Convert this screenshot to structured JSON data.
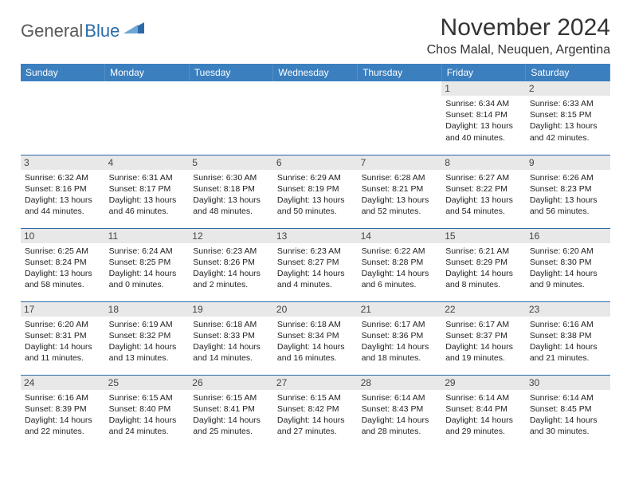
{
  "logo": {
    "text1": "General",
    "text2": "Blue"
  },
  "title": "November 2024",
  "location": "Chos Malal, Neuquen, Argentina",
  "colors": {
    "header_bg": "#3b7fbf",
    "border": "#2b6aa8",
    "daynum_bg": "#e8e8e8",
    "text": "#222222"
  },
  "daynames": [
    "Sunday",
    "Monday",
    "Tuesday",
    "Wednesday",
    "Thursday",
    "Friday",
    "Saturday"
  ],
  "weeks": [
    [
      {
        "n": "",
        "sr": "",
        "ss": "",
        "dl": ""
      },
      {
        "n": "",
        "sr": "",
        "ss": "",
        "dl": ""
      },
      {
        "n": "",
        "sr": "",
        "ss": "",
        "dl": ""
      },
      {
        "n": "",
        "sr": "",
        "ss": "",
        "dl": ""
      },
      {
        "n": "",
        "sr": "",
        "ss": "",
        "dl": ""
      },
      {
        "n": "1",
        "sr": "Sunrise: 6:34 AM",
        "ss": "Sunset: 8:14 PM",
        "dl": "Daylight: 13 hours and 40 minutes."
      },
      {
        "n": "2",
        "sr": "Sunrise: 6:33 AM",
        "ss": "Sunset: 8:15 PM",
        "dl": "Daylight: 13 hours and 42 minutes."
      }
    ],
    [
      {
        "n": "3",
        "sr": "Sunrise: 6:32 AM",
        "ss": "Sunset: 8:16 PM",
        "dl": "Daylight: 13 hours and 44 minutes."
      },
      {
        "n": "4",
        "sr": "Sunrise: 6:31 AM",
        "ss": "Sunset: 8:17 PM",
        "dl": "Daylight: 13 hours and 46 minutes."
      },
      {
        "n": "5",
        "sr": "Sunrise: 6:30 AM",
        "ss": "Sunset: 8:18 PM",
        "dl": "Daylight: 13 hours and 48 minutes."
      },
      {
        "n": "6",
        "sr": "Sunrise: 6:29 AM",
        "ss": "Sunset: 8:19 PM",
        "dl": "Daylight: 13 hours and 50 minutes."
      },
      {
        "n": "7",
        "sr": "Sunrise: 6:28 AM",
        "ss": "Sunset: 8:21 PM",
        "dl": "Daylight: 13 hours and 52 minutes."
      },
      {
        "n": "8",
        "sr": "Sunrise: 6:27 AM",
        "ss": "Sunset: 8:22 PM",
        "dl": "Daylight: 13 hours and 54 minutes."
      },
      {
        "n": "9",
        "sr": "Sunrise: 6:26 AM",
        "ss": "Sunset: 8:23 PM",
        "dl": "Daylight: 13 hours and 56 minutes."
      }
    ],
    [
      {
        "n": "10",
        "sr": "Sunrise: 6:25 AM",
        "ss": "Sunset: 8:24 PM",
        "dl": "Daylight: 13 hours and 58 minutes."
      },
      {
        "n": "11",
        "sr": "Sunrise: 6:24 AM",
        "ss": "Sunset: 8:25 PM",
        "dl": "Daylight: 14 hours and 0 minutes."
      },
      {
        "n": "12",
        "sr": "Sunrise: 6:23 AM",
        "ss": "Sunset: 8:26 PM",
        "dl": "Daylight: 14 hours and 2 minutes."
      },
      {
        "n": "13",
        "sr": "Sunrise: 6:23 AM",
        "ss": "Sunset: 8:27 PM",
        "dl": "Daylight: 14 hours and 4 minutes."
      },
      {
        "n": "14",
        "sr": "Sunrise: 6:22 AM",
        "ss": "Sunset: 8:28 PM",
        "dl": "Daylight: 14 hours and 6 minutes."
      },
      {
        "n": "15",
        "sr": "Sunrise: 6:21 AM",
        "ss": "Sunset: 8:29 PM",
        "dl": "Daylight: 14 hours and 8 minutes."
      },
      {
        "n": "16",
        "sr": "Sunrise: 6:20 AM",
        "ss": "Sunset: 8:30 PM",
        "dl": "Daylight: 14 hours and 9 minutes."
      }
    ],
    [
      {
        "n": "17",
        "sr": "Sunrise: 6:20 AM",
        "ss": "Sunset: 8:31 PM",
        "dl": "Daylight: 14 hours and 11 minutes."
      },
      {
        "n": "18",
        "sr": "Sunrise: 6:19 AM",
        "ss": "Sunset: 8:32 PM",
        "dl": "Daylight: 14 hours and 13 minutes."
      },
      {
        "n": "19",
        "sr": "Sunrise: 6:18 AM",
        "ss": "Sunset: 8:33 PM",
        "dl": "Daylight: 14 hours and 14 minutes."
      },
      {
        "n": "20",
        "sr": "Sunrise: 6:18 AM",
        "ss": "Sunset: 8:34 PM",
        "dl": "Daylight: 14 hours and 16 minutes."
      },
      {
        "n": "21",
        "sr": "Sunrise: 6:17 AM",
        "ss": "Sunset: 8:36 PM",
        "dl": "Daylight: 14 hours and 18 minutes."
      },
      {
        "n": "22",
        "sr": "Sunrise: 6:17 AM",
        "ss": "Sunset: 8:37 PM",
        "dl": "Daylight: 14 hours and 19 minutes."
      },
      {
        "n": "23",
        "sr": "Sunrise: 6:16 AM",
        "ss": "Sunset: 8:38 PM",
        "dl": "Daylight: 14 hours and 21 minutes."
      }
    ],
    [
      {
        "n": "24",
        "sr": "Sunrise: 6:16 AM",
        "ss": "Sunset: 8:39 PM",
        "dl": "Daylight: 14 hours and 22 minutes."
      },
      {
        "n": "25",
        "sr": "Sunrise: 6:15 AM",
        "ss": "Sunset: 8:40 PM",
        "dl": "Daylight: 14 hours and 24 minutes."
      },
      {
        "n": "26",
        "sr": "Sunrise: 6:15 AM",
        "ss": "Sunset: 8:41 PM",
        "dl": "Daylight: 14 hours and 25 minutes."
      },
      {
        "n": "27",
        "sr": "Sunrise: 6:15 AM",
        "ss": "Sunset: 8:42 PM",
        "dl": "Daylight: 14 hours and 27 minutes."
      },
      {
        "n": "28",
        "sr": "Sunrise: 6:14 AM",
        "ss": "Sunset: 8:43 PM",
        "dl": "Daylight: 14 hours and 28 minutes."
      },
      {
        "n": "29",
        "sr": "Sunrise: 6:14 AM",
        "ss": "Sunset: 8:44 PM",
        "dl": "Daylight: 14 hours and 29 minutes."
      },
      {
        "n": "30",
        "sr": "Sunrise: 6:14 AM",
        "ss": "Sunset: 8:45 PM",
        "dl": "Daylight: 14 hours and 30 minutes."
      }
    ]
  ]
}
